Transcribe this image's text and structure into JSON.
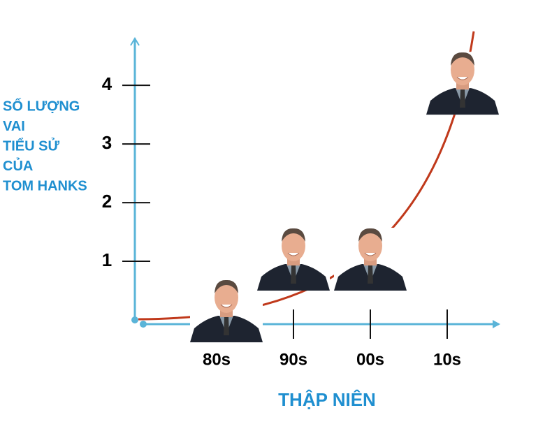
{
  "chart_data": {
    "type": "photo-line",
    "y_label_lines": [
      "SỐ LƯỢNG",
      "VAI",
      "TIỂU SỬ",
      "CỦA",
      "TOM HANKS"
    ],
    "x_label": "THẬP NIÊN",
    "categories": [
      "80s",
      "90s",
      "00s",
      "10s"
    ],
    "values": [
      0,
      1,
      1,
      4
    ],
    "ylim": [
      0,
      4.8
    ],
    "yticks": [
      1,
      2,
      3,
      4
    ],
    "axis_color": "#5ab4d8",
    "curve_color": "#c0391b",
    "label_color": "#1f8fd0"
  }
}
